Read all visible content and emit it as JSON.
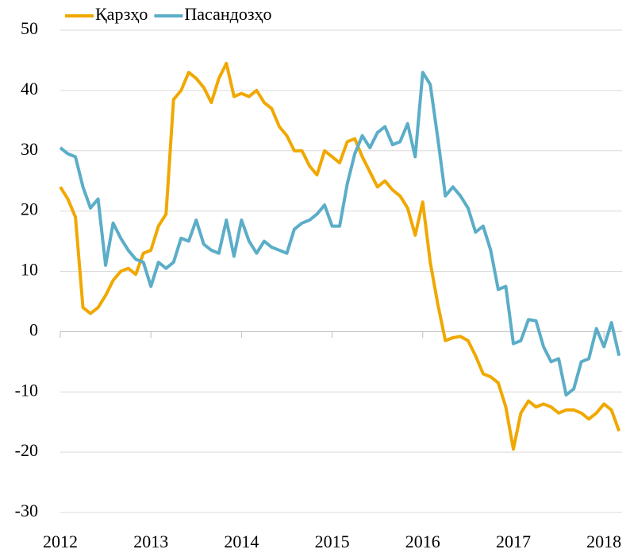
{
  "chart_data": {
    "type": "line",
    "x": [
      2012,
      2012.083,
      2012.167,
      2012.25,
      2012.333,
      2012.417,
      2012.5,
      2012.583,
      2012.667,
      2012.75,
      2012.833,
      2012.917,
      2013,
      2013.083,
      2013.167,
      2013.25,
      2013.333,
      2013.417,
      2013.5,
      2013.583,
      2013.667,
      2013.75,
      2013.833,
      2013.917,
      2014,
      2014.083,
      2014.167,
      2014.25,
      2014.333,
      2014.417,
      2014.5,
      2014.583,
      2014.667,
      2014.75,
      2014.833,
      2014.917,
      2015,
      2015.083,
      2015.167,
      2015.25,
      2015.333,
      2015.417,
      2015.5,
      2015.583,
      2015.667,
      2015.75,
      2015.833,
      2015.917,
      2016,
      2016.083,
      2016.167,
      2016.25,
      2016.333,
      2016.417,
      2016.5,
      2016.583,
      2016.667,
      2016.75,
      2016.833,
      2016.917,
      2017,
      2017.083,
      2017.167,
      2017.25,
      2017.333,
      2017.417,
      2017.5,
      2017.583,
      2017.667,
      2017.75,
      2017.833,
      2017.917,
      2018,
      2018.083,
      2018.167
    ],
    "series": [
      {
        "name": "Қарзҳо",
        "color": "#f0a800",
        "values": [
          24,
          22,
          19,
          4,
          3,
          4,
          6,
          8.5,
          10,
          10.5,
          9.5,
          13,
          13.5,
          17.5,
          19.5,
          38.5,
          40,
          43,
          42,
          40.5,
          38,
          42,
          44.5,
          39,
          39.5,
          39,
          40,
          38,
          37,
          34,
          32.5,
          30,
          30,
          27.5,
          26,
          30,
          29,
          28,
          31.5,
          32,
          29,
          26.5,
          24,
          25,
          23.5,
          22.5,
          20.5,
          16,
          21.5,
          11.5,
          4.5,
          -1.5,
          -1,
          -0.8,
          -1.5,
          -4,
          -7,
          -7.5,
          -8.5,
          -12.5,
          -19.5,
          -13.5,
          -11.5,
          -12.5,
          -12,
          -12.5,
          -13.5,
          -13,
          -13,
          -13.5,
          -14.5,
          -13.5,
          -12,
          -13,
          -16.5
        ]
      },
      {
        "name": "Пасандозҳо",
        "color": "#5badc8",
        "values": [
          30.5,
          29.5,
          29,
          24,
          20.5,
          22,
          11,
          18,
          15.5,
          13.5,
          12,
          11.5,
          7.5,
          11.5,
          10.5,
          11.5,
          15.5,
          15,
          18.5,
          14.5,
          13.5,
          13,
          18.5,
          12.5,
          18.5,
          15,
          13,
          15,
          14,
          13.5,
          13,
          17,
          18,
          18.5,
          19.5,
          21,
          17.5,
          17.5,
          24.5,
          29.5,
          32.5,
          30.5,
          33,
          34,
          31,
          31.5,
          34.5,
          29,
          43,
          41,
          32,
          22.5,
          24,
          22.5,
          20.5,
          16.5,
          17.5,
          13.5,
          7,
          7.5,
          -2,
          -1.5,
          2,
          1.8,
          -2.5,
          -5,
          -4.5,
          -10.5,
          -9.5,
          -5,
          -4.5,
          0.5,
          -2.5,
          1.5,
          -4
        ]
      }
    ],
    "xlim": [
      2012,
      2018.2
    ],
    "xticks": [
      2012,
      2013,
      2014,
      2015,
      2016,
      2017,
      2018
    ],
    "ylim": [
      -30,
      50
    ],
    "yticks": [
      -30,
      -20,
      -10,
      0,
      10,
      20,
      30,
      40,
      50
    ],
    "grid": true,
    "legend": "top"
  }
}
